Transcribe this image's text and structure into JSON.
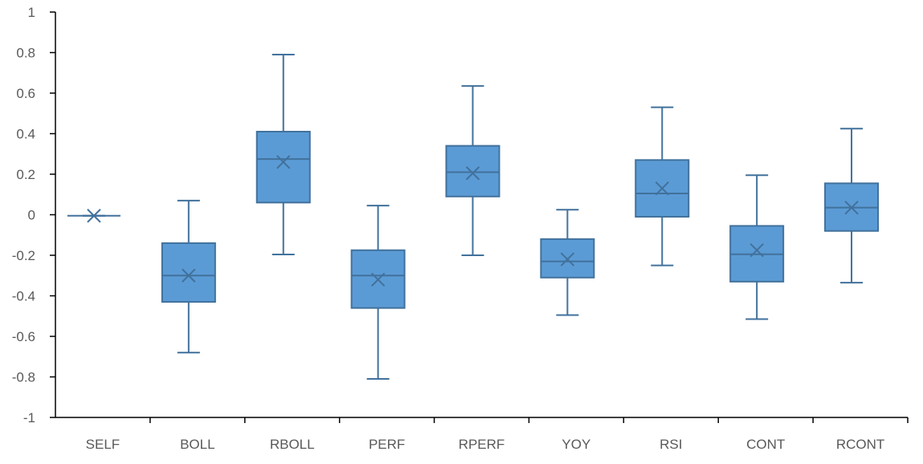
{
  "chart_data": {
    "type": "boxplot",
    "title": "",
    "xlabel": "",
    "ylabel": "",
    "ylim": [
      -1,
      1
    ],
    "yticks": [
      "1",
      "0.8",
      "0.6",
      "0.4",
      "0.2",
      "0",
      "-0.2",
      "-0.4",
      "-0.6",
      "-0.8",
      "-1"
    ],
    "ytick_values": [
      1,
      0.8,
      0.6,
      0.4,
      0.2,
      0,
      -0.2,
      -0.4,
      -0.6,
      -0.8,
      -1
    ],
    "grid": false,
    "colors": {
      "fill": "#5B9BD5",
      "stroke": "#41719C",
      "axis": "#000000"
    },
    "categories": [
      "SELF",
      "BOLL",
      "RBOLL",
      "PERF",
      "RPERF",
      "YOY",
      "RSI",
      "CONT",
      "RCONT"
    ],
    "boxes": [
      {
        "name": "SELF",
        "min": -0.005,
        "q1": -0.005,
        "median": -0.005,
        "q3": -0.005,
        "max": -0.005,
        "mean": -0.005
      },
      {
        "name": "BOLL",
        "min": -0.68,
        "q1": -0.43,
        "median": -0.3,
        "q3": -0.14,
        "max": 0.07,
        "mean": -0.3
      },
      {
        "name": "RBOLL",
        "min": -0.196,
        "q1": 0.06,
        "median": 0.275,
        "q3": 0.41,
        "max": 0.79,
        "mean": 0.26
      },
      {
        "name": "PERF",
        "min": -0.81,
        "q1": -0.46,
        "median": -0.3,
        "q3": -0.175,
        "max": 0.045,
        "mean": -0.32
      },
      {
        "name": "RPERF",
        "min": -0.2,
        "q1": 0.09,
        "median": 0.21,
        "q3": 0.34,
        "max": 0.635,
        "mean": 0.205
      },
      {
        "name": "YOY",
        "min": -0.495,
        "q1": -0.31,
        "median": -0.23,
        "q3": -0.12,
        "max": 0.025,
        "mean": -0.22
      },
      {
        "name": "RSI",
        "min": -0.25,
        "q1": -0.01,
        "median": 0.105,
        "q3": 0.27,
        "max": 0.53,
        "mean": 0.13
      },
      {
        "name": "CONT",
        "min": -0.515,
        "q1": -0.33,
        "median": -0.195,
        "q3": -0.055,
        "max": 0.195,
        "mean": -0.175
      },
      {
        "name": "RCONT",
        "min": -0.335,
        "q1": -0.08,
        "median": 0.035,
        "q3": 0.155,
        "max": 0.425,
        "mean": 0.035
      }
    ]
  }
}
